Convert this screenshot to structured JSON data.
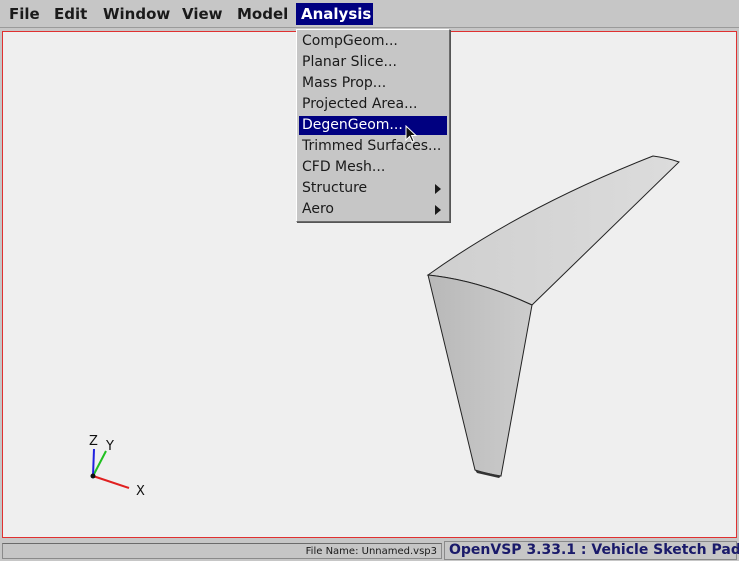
{
  "menubar": {
    "items": [
      {
        "label": "File"
      },
      {
        "label": "Edit"
      },
      {
        "label": "Window"
      },
      {
        "label": "View"
      },
      {
        "label": "Model"
      },
      {
        "label": "Analysis"
      }
    ]
  },
  "analysis_menu": {
    "items": [
      {
        "label": "CompGeom..."
      },
      {
        "label": "Planar Slice..."
      },
      {
        "label": "Mass Prop..."
      },
      {
        "label": "Projected Area..."
      },
      {
        "label": "DegenGeom..."
      },
      {
        "label": "Trimmed Surfaces..."
      },
      {
        "label": "CFD Mesh..."
      },
      {
        "label": "Structure"
      },
      {
        "label": "Aero"
      }
    ],
    "highlighted": "DegenGeom..."
  },
  "axes": {
    "x_label": "X",
    "y_label": "Y",
    "z_label": "Z"
  },
  "status": {
    "file_name": "File Name: Unnamed.vsp3",
    "app_title": "OpenVSP 3.33.1 : Vehicle Sketch Pad"
  },
  "colors": {
    "menu_highlight": "#000080",
    "viewport_border": "#e03030",
    "x_axis": "#e02020",
    "y_axis": "#20c020",
    "z_axis": "#2020e0"
  }
}
